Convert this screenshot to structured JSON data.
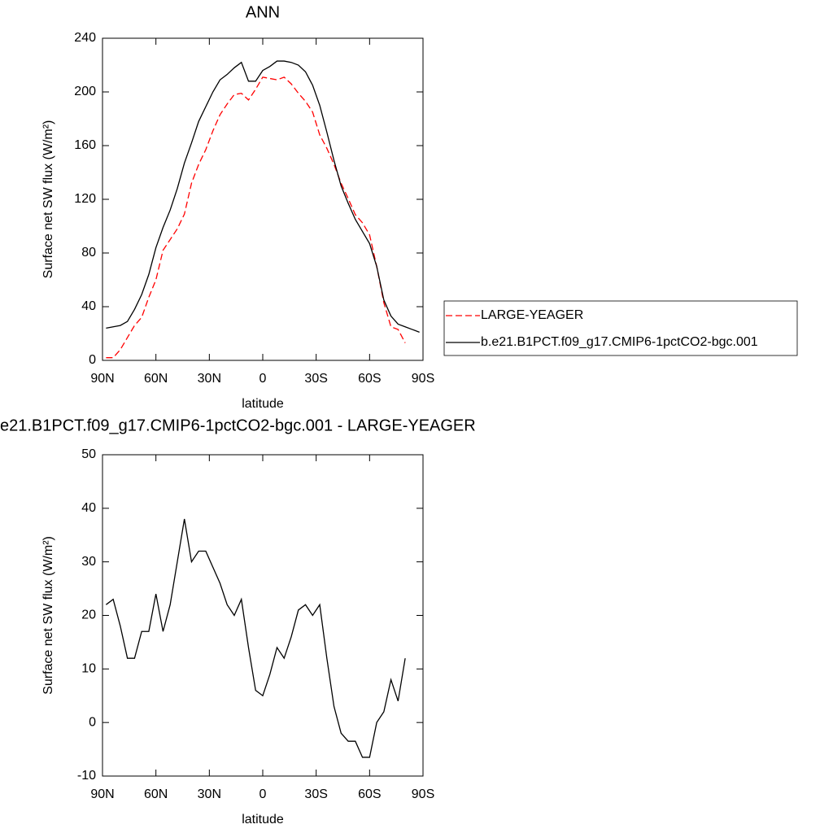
{
  "chart_data": [
    {
      "type": "line",
      "title": "ANN",
      "xlabel": "latitude",
      "ylabel": "Surface net SW flux (W/m²)",
      "x": [
        88,
        84,
        80,
        76,
        72,
        68,
        64,
        60,
        56,
        52,
        48,
        44,
        40,
        36,
        32,
        28,
        24,
        20,
        16,
        12,
        8,
        4,
        0,
        -4,
        -8,
        -12,
        -16,
        -20,
        -24,
        -28,
        -32,
        -36,
        -40,
        -44,
        -48,
        -52,
        -56,
        -60,
        -64,
        -68,
        -72,
        -76,
        -80,
        -84,
        -88
      ],
      "series": [
        {
          "name": "LARGE-YEAGER",
          "color": "#ff0000",
          "linestyle": "dashed",
          "values": [
            2,
            2,
            8,
            17,
            26,
            32,
            47,
            60,
            82,
            90,
            98,
            109,
            132,
            146,
            157,
            171,
            183,
            191,
            198,
            199,
            194,
            202,
            211,
            210,
            209,
            211,
            206,
            199,
            193,
            185,
            168,
            158,
            146,
            132,
            120.5,
            108.5,
            102.5,
            93.5,
            70,
            43,
            25,
            23,
            13,
            null,
            null
          ]
        },
        {
          "name": "b.e21.B1PCT.f09_g17.CMIP6-1pctCO2-bgc.001",
          "color": "#000000",
          "linestyle": "solid",
          "values": [
            24,
            25,
            26,
            29,
            38,
            49,
            64,
            84,
            99,
            112,
            128,
            147,
            162,
            178,
            189,
            200,
            209,
            213,
            218,
            222,
            208,
            208,
            216,
            219,
            223,
            223,
            222,
            220,
            215,
            205,
            190,
            170,
            149,
            130,
            117,
            105,
            96,
            87,
            70,
            45,
            33,
            27,
            25,
            23,
            21
          ]
        }
      ],
      "xlim": [
        90,
        -90
      ],
      "xticks": [
        {
          "value": 90,
          "label": "90N"
        },
        {
          "value": 60,
          "label": "60N"
        },
        {
          "value": 30,
          "label": "30N"
        },
        0,
        {
          "value": -30,
          "label": "30S"
        },
        {
          "value": -60,
          "label": "60S"
        },
        {
          "value": -90,
          "label": "90S"
        }
      ],
      "ylim": [
        0,
        240
      ],
      "yticks": [
        0,
        40,
        80,
        120,
        160,
        200,
        240
      ],
      "legend": "right"
    },
    {
      "type": "line",
      "title": "e21.B1PCT.f09_g17.CMIP6-1pctCO2-bgc.001 - LARGE-YEAGER",
      "xlabel": "latitude",
      "ylabel": "Surface net SW flux (W/m²)",
      "x": [
        88,
        84,
        80,
        76,
        72,
        68,
        64,
        60,
        56,
        52,
        48,
        44,
        40,
        36,
        32,
        28,
        24,
        20,
        16,
        12,
        8,
        4,
        0,
        -4,
        -8,
        -12,
        -16,
        -20,
        -24,
        -28,
        -32,
        -36,
        -40,
        -44,
        -48,
        -52,
        -56,
        -60,
        -64,
        -68,
        -72,
        -76,
        -80,
        -84,
        -88
      ],
      "color": "#000000",
      "values": [
        22,
        23,
        18,
        12,
        12,
        17,
        17,
        24,
        17,
        22,
        30,
        38,
        30,
        32,
        32,
        29,
        26,
        22,
        20,
        23,
        14,
        6,
        5,
        9,
        14,
        12,
        16,
        21,
        22,
        20,
        22,
        12,
        3,
        -2,
        -3.5,
        -3.5,
        -6.5,
        -6.5,
        0,
        2,
        8,
        4,
        12,
        null,
        null
      ],
      "xlim": [
        90,
        -90
      ],
      "xticks": [
        {
          "value": 90,
          "label": "90N"
        },
        {
          "value": 60,
          "label": "60N"
        },
        {
          "value": 30,
          "label": "30N"
        },
        0,
        {
          "value": -30,
          "label": "30S"
        },
        {
          "value": -60,
          "label": "60S"
        },
        {
          "value": -90,
          "label": "90S"
        }
      ],
      "ylim": [
        -10,
        50
      ],
      "yticks": [
        -10,
        0,
        10,
        20,
        30,
        40,
        50
      ]
    }
  ]
}
